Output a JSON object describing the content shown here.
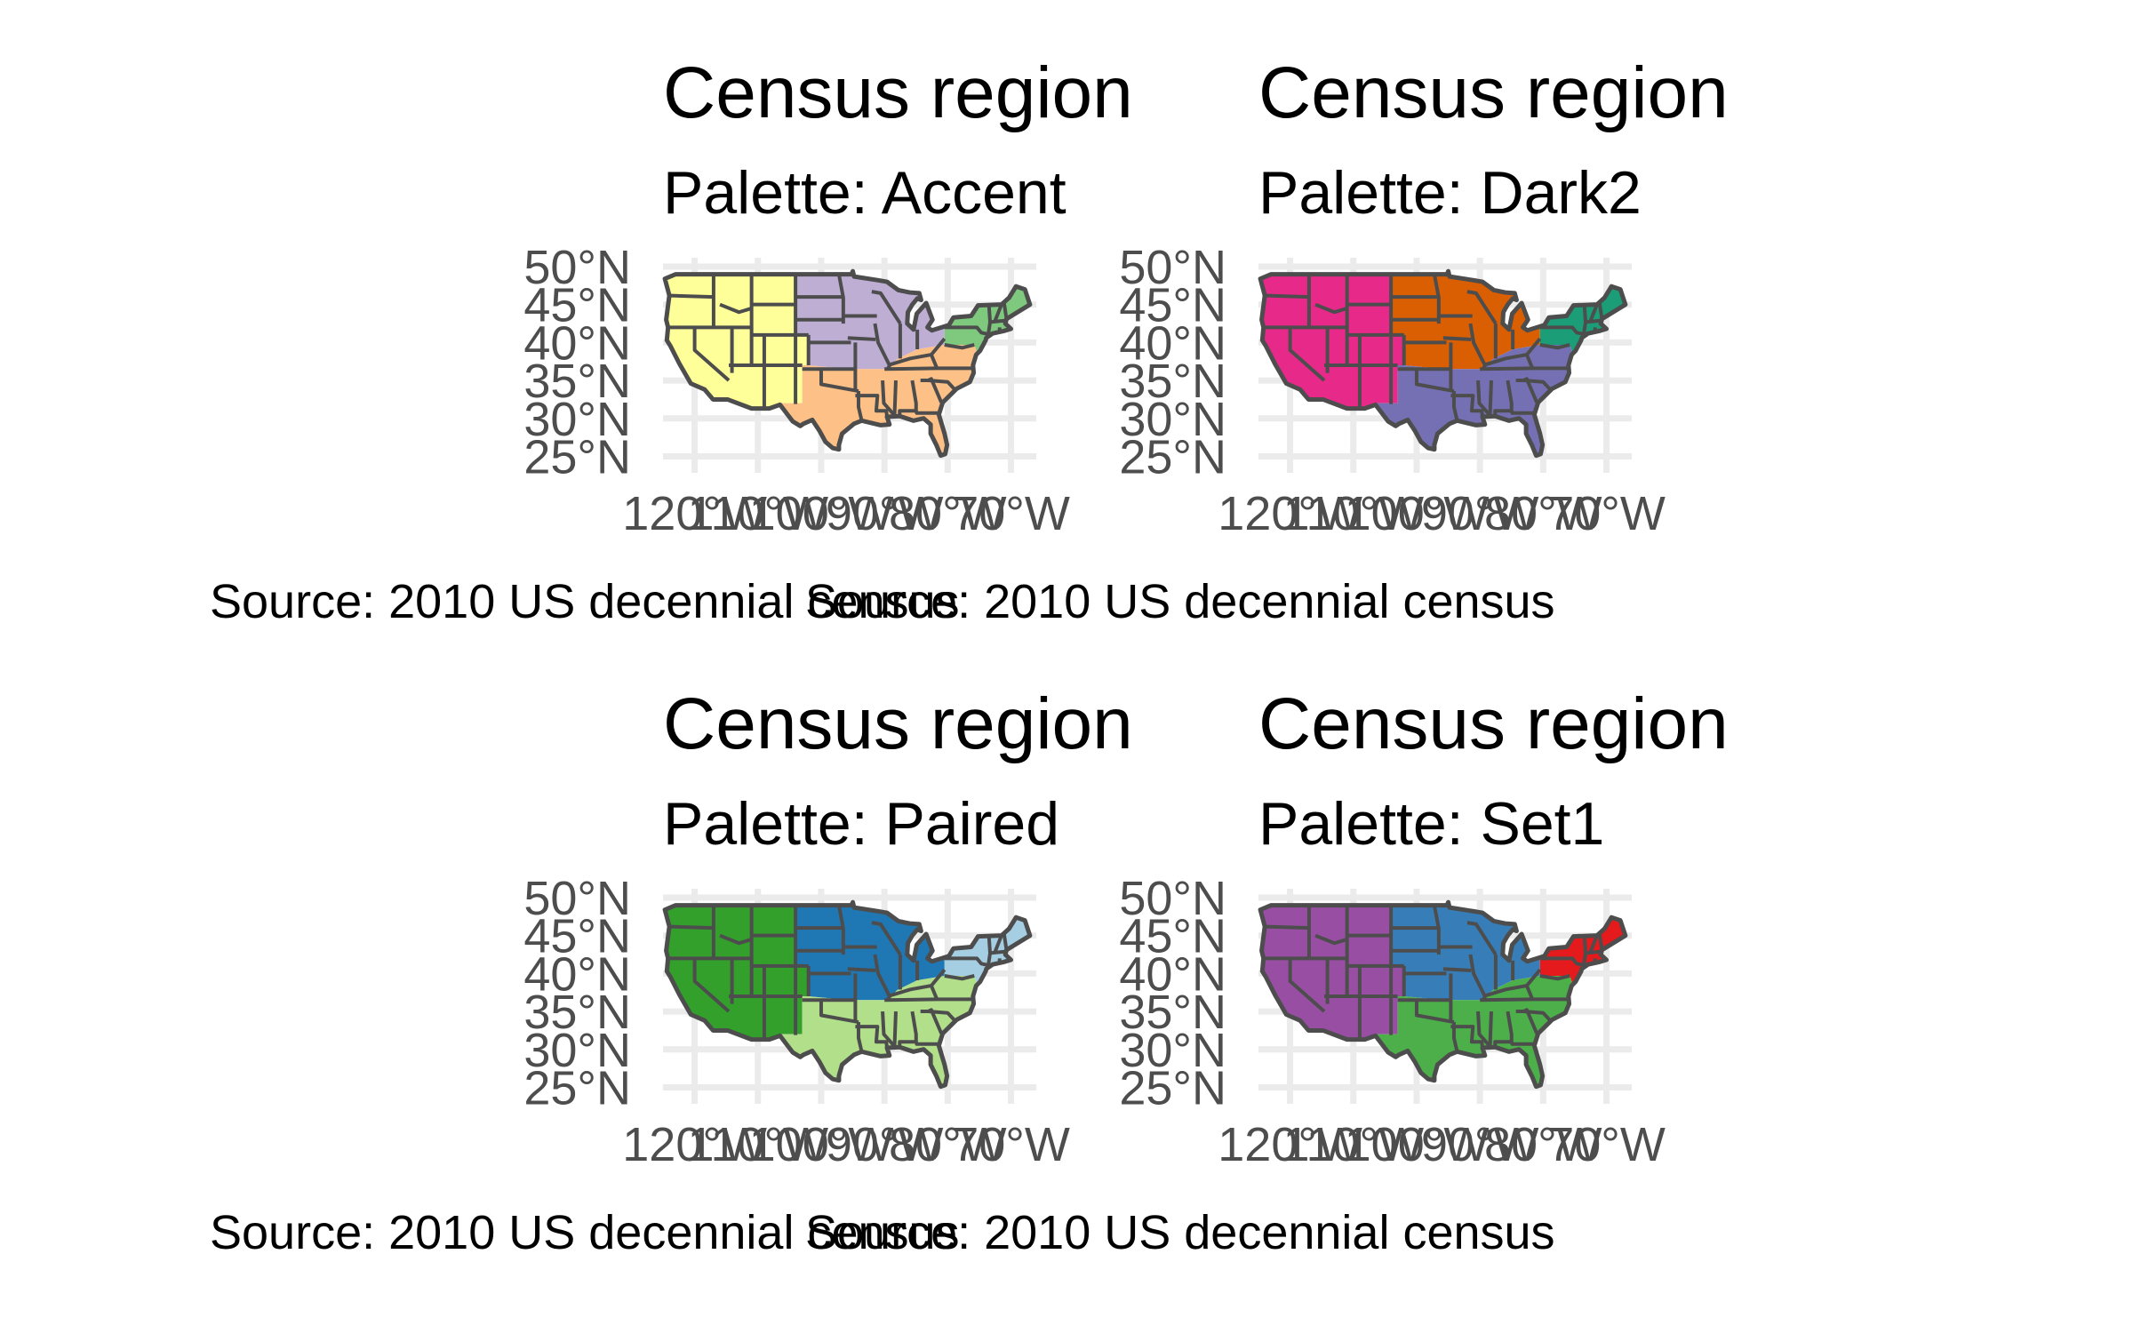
{
  "panels": [
    {
      "title": "Census region",
      "subtitle": "Palette: Accent",
      "caption": "Source: 2010 US decennial census",
      "colors": {
        "West": "#FFFF99",
        "Midwest": "#BEAED4",
        "South": "#FDC086",
        "Northeast": "#7FC97F"
      }
    },
    {
      "title": "Census region",
      "subtitle": "Palette: Dark2",
      "caption": "Source: 2010 US decennial census",
      "colors": {
        "West": "#E7298A",
        "Midwest": "#D95F02",
        "South": "#7570B3",
        "Northeast": "#1B9E77"
      }
    },
    {
      "title": "Census region",
      "subtitle": "Palette: Paired",
      "caption": "Source: 2010 US decennial census",
      "colors": {
        "West": "#33A02C",
        "Midwest": "#1F78B4",
        "South": "#B2DF8A",
        "Northeast": "#A6CEE3"
      }
    },
    {
      "title": "Census region",
      "subtitle": "Palette: Set1",
      "caption": "Source: 2010 US decennial census",
      "colors": {
        "West": "#984EA3",
        "Midwest": "#377EB8",
        "South": "#4DAF4A",
        "Northeast": "#E41A1C"
      }
    }
  ],
  "axes": {
    "lat_labels": [
      "50°N",
      "45°N",
      "40°N",
      "35°N",
      "30°N",
      "25°N"
    ],
    "lon_labels": [
      "120°W",
      "110°W",
      "100°W",
      "90°W",
      "80°W",
      "70°W"
    ]
  }
}
